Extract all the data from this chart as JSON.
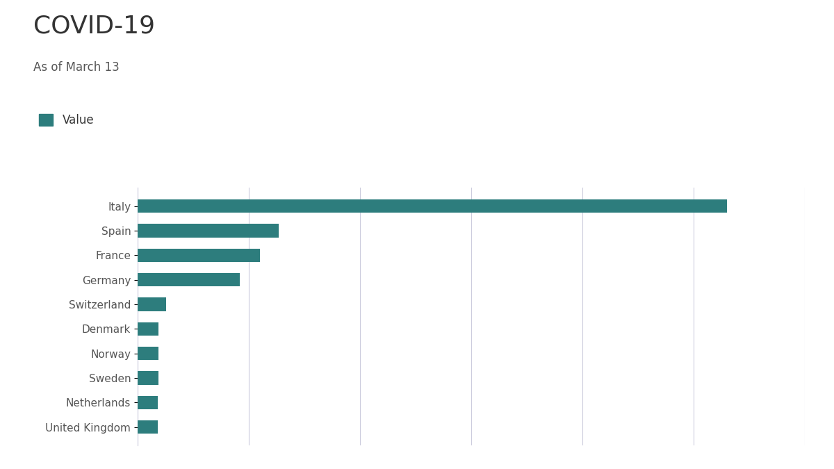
{
  "title": "COVID-19",
  "subtitle": "As of March 13",
  "legend_label": "Value",
  "bar_color": "#2d7d7d",
  "background_color": "#ffffff",
  "grid_color": "#ccccdd",
  "countries": [
    "Italy",
    "Spain",
    "France",
    "Germany",
    "Switzerland",
    "Denmark",
    "Norway",
    "Sweden",
    "Netherlands",
    "United Kingdom"
  ],
  "values": [
    17660,
    4231,
    3661,
    3062,
    854,
    617,
    621,
    620,
    614,
    596
  ],
  "xlim": [
    0,
    20000
  ],
  "title_fontsize": 26,
  "subtitle_fontsize": 12,
  "label_fontsize": 11,
  "legend_fontsize": 12,
  "title_color": "#333333",
  "subtitle_color": "#555555",
  "label_color": "#555555"
}
